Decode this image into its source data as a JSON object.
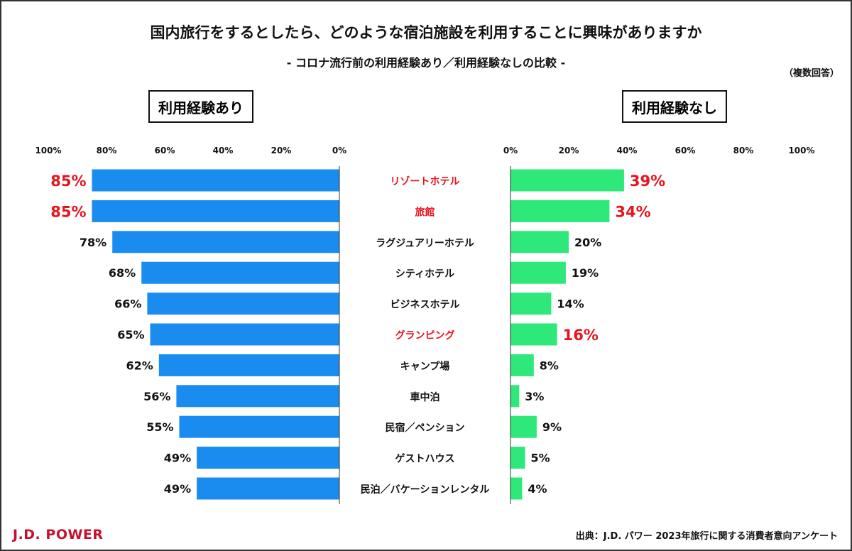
{
  "chart_data": {
    "type": "bar",
    "title": "国内旅行をするとしたら、どのような宿泊施設を利用することに興味がありますか",
    "subtitle": "- コロナ流行前の利用経験あり／利用経験なしの比較 -",
    "note": "（複数回答）",
    "categories": [
      "リゾートホテル",
      "旅館",
      "ラグジュアリーホテル",
      "シティホテル",
      "ビジネスホテル",
      "グランピング",
      "キャンプ場",
      "車中泊",
      "民宿／ペンション",
      "ゲストハウス",
      "民泊／バケーションレンタル"
    ],
    "highlighted_categories": [
      "リゾートホテル",
      "旅館",
      "グランピング"
    ],
    "series": [
      {
        "name": "利用経験あり",
        "values": [
          85,
          85,
          78,
          68,
          66,
          65,
          62,
          56,
          55,
          49,
          49
        ],
        "color": "#1a8cf0",
        "highlighted": [
          true,
          true,
          false,
          false,
          false,
          false,
          false,
          false,
          false,
          false,
          false
        ]
      },
      {
        "name": "利用経験なし",
        "values": [
          39,
          34,
          20,
          19,
          14,
          16,
          8,
          3,
          9,
          5,
          4
        ],
        "color": "#2ee87a",
        "highlighted": [
          true,
          true,
          false,
          false,
          false,
          true,
          false,
          false,
          false,
          false,
          false
        ]
      }
    ],
    "xlim": [
      0,
      100
    ],
    "ticks": [
      "0%",
      "20%",
      "40%",
      "60%",
      "80%",
      "100%"
    ],
    "tick_values": [
      0,
      20,
      40,
      60,
      80,
      100
    ],
    "unit": "%",
    "highlight_color": "#e8141e",
    "grid": false
  },
  "footer": {
    "logo": "J.D. POWER",
    "source": "出典：J.D. パワー 2023年旅行に関する消費者意向アンケート"
  }
}
